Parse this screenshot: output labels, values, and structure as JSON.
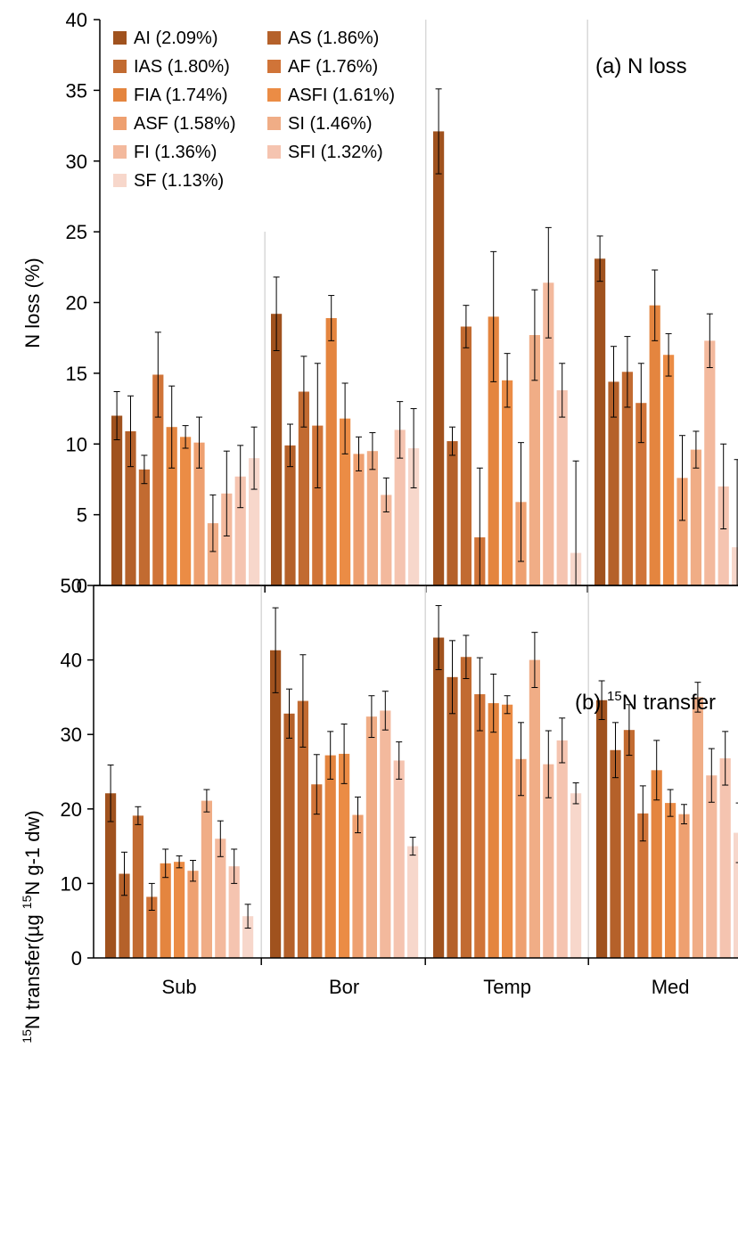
{
  "legend": [
    {
      "label": "AI (2.09%)",
      "color": "#a0521e"
    },
    {
      "label": "AS (1.86%)",
      "color": "#b5612a"
    },
    {
      "label": "IAS (1.80%)",
      "color": "#c26b31"
    },
    {
      "label": "AF (1.76%)",
      "color": "#d07438"
    },
    {
      "label": "FIA (1.74%)",
      "color": "#e4853f"
    },
    {
      "label": "ASFI (1.61%)",
      "color": "#eb8c45"
    },
    {
      "label": "ASF (1.58%)",
      "color": "#eea070"
    },
    {
      "label": "SI (1.46%)",
      "color": "#f0ad86"
    },
    {
      "label": "FI (1.36%)",
      "color": "#f3b99d"
    },
    {
      "label": "SFI (1.32%)",
      "color": "#f5c4b0"
    },
    {
      "label": "SF (1.13%)",
      "color": "#f7d7cb"
    }
  ],
  "chart_data": [
    {
      "type": "bar",
      "panel_label": "(a) N loss",
      "ylabel": "N loss (%)",
      "ylim": [
        0,
        40
      ],
      "yticks": [
        0,
        5,
        10,
        15,
        20,
        25,
        30,
        35,
        40
      ],
      "categories": [
        "Sub",
        "Bor",
        "Temp",
        "Med"
      ],
      "series": [
        {
          "name": "AI (2.09%)",
          "values": [
            12.0,
            19.2,
            32.1,
            23.1
          ],
          "errors": [
            1.7,
            2.6,
            3.0,
            1.6
          ]
        },
        {
          "name": "AS (1.86%)",
          "values": [
            10.9,
            9.9,
            10.2,
            14.4
          ],
          "errors": [
            2.5,
            1.5,
            1.0,
            2.5
          ]
        },
        {
          "name": "IAS (1.80%)",
          "values": [
            8.2,
            13.7,
            18.3,
            15.1
          ],
          "errors": [
            1.0,
            2.5,
            1.5,
            2.5
          ]
        },
        {
          "name": "AF (1.76%)",
          "values": [
            14.9,
            11.3,
            3.4,
            12.9
          ],
          "errors": [
            3.0,
            4.4,
            4.9,
            2.8
          ]
        },
        {
          "name": "FIA (1.74%)",
          "values": [
            11.2,
            18.9,
            19.0,
            19.8
          ],
          "errors": [
            2.9,
            1.6,
            4.6,
            2.5
          ]
        },
        {
          "name": "ASFI (1.61%)",
          "values": [
            10.5,
            11.8,
            14.5,
            16.3
          ],
          "errors": [
            0.8,
            2.5,
            1.9,
            1.5
          ]
        },
        {
          "name": "ASF (1.58%)",
          "values": [
            10.1,
            9.3,
            5.9,
            7.6
          ],
          "errors": [
            1.8,
            1.2,
            4.2,
            3.0
          ]
        },
        {
          "name": "SI (1.46%)",
          "values": [
            4.4,
            9.5,
            17.7,
            9.6
          ],
          "errors": [
            2.0,
            1.3,
            3.2,
            1.3
          ]
        },
        {
          "name": "FI (1.36%)",
          "values": [
            6.5,
            6.4,
            21.4,
            17.3
          ],
          "errors": [
            3.0,
            1.2,
            3.9,
            1.9
          ]
        },
        {
          "name": "SFI (1.32%)",
          "values": [
            7.7,
            11.0,
            13.8,
            7.0
          ],
          "errors": [
            2.2,
            2.0,
            1.9,
            3.0
          ]
        },
        {
          "name": "SF (1.13%)",
          "values": [
            9.0,
            9.7,
            2.3,
            2.7
          ],
          "errors": [
            2.2,
            2.8,
            6.5,
            6.2
          ]
        }
      ]
    },
    {
      "type": "bar",
      "panel_label_pre": "(b) ",
      "panel_label_sup": "15",
      "panel_label_post": "N transfer",
      "ylabel_sup1": "15",
      "ylabel_mid": "N transfer(µg ",
      "ylabel_sup2": "15",
      "ylabel_post": "N g-1 dw)",
      "ylim": [
        0,
        50
      ],
      "yticks": [
        0,
        10,
        20,
        30,
        40,
        50
      ],
      "categories": [
        "Sub",
        "Bor",
        "Temp",
        "Med"
      ],
      "series": [
        {
          "name": "AI (2.09%)",
          "values": [
            22.1,
            41.3,
            43.0,
            34.6
          ],
          "errors": [
            3.8,
            5.7,
            4.3,
            2.6
          ]
        },
        {
          "name": "AS (1.86%)",
          "values": [
            11.3,
            32.8,
            37.7,
            27.9
          ],
          "errors": [
            2.9,
            3.3,
            4.9,
            3.7
          ]
        },
        {
          "name": "IAS (1.80%)",
          "values": [
            19.1,
            34.5,
            40.4,
            30.6
          ],
          "errors": [
            1.2,
            6.2,
            2.9,
            3.4
          ]
        },
        {
          "name": "AF (1.76%)",
          "values": [
            8.2,
            23.3,
            35.4,
            19.4
          ],
          "errors": [
            1.8,
            4.0,
            4.9,
            3.7
          ]
        },
        {
          "name": "FIA (1.74%)",
          "values": [
            12.7,
            27.2,
            34.2,
            25.2
          ],
          "errors": [
            1.9,
            3.2,
            3.9,
            4.0
          ]
        },
        {
          "name": "ASFI (1.61%)",
          "values": [
            12.9,
            27.4,
            34.0,
            20.8
          ],
          "errors": [
            0.8,
            4.0,
            1.2,
            1.8
          ]
        },
        {
          "name": "ASF (1.58%)",
          "values": [
            11.7,
            19.2,
            26.7,
            19.3
          ],
          "errors": [
            1.4,
            2.4,
            4.9,
            1.3
          ]
        },
        {
          "name": "SI (1.46%)",
          "values": [
            21.1,
            32.4,
            40.0,
            35.0
          ],
          "errors": [
            1.5,
            2.8,
            3.7,
            2.0
          ]
        },
        {
          "name": "FI (1.36%)",
          "values": [
            16.0,
            33.2,
            26.0,
            24.5
          ],
          "errors": [
            2.4,
            2.6,
            4.5,
            3.6
          ]
        },
        {
          "name": "SFI (1.32%)",
          "values": [
            12.3,
            26.5,
            29.2,
            26.8
          ],
          "errors": [
            2.3,
            2.5,
            3.0,
            3.6
          ]
        },
        {
          "name": "SF (1.13%)",
          "values": [
            5.6,
            15.0,
            22.1,
            16.8
          ],
          "errors": [
            1.6,
            1.2,
            1.4,
            4.0
          ]
        }
      ]
    }
  ]
}
